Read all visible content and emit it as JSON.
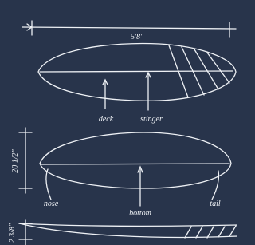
{
  "dimensions": {
    "length": "5'8\"",
    "width": "20 1/2\"",
    "thickness": "2 3/8\""
  },
  "labels": {
    "deck": "deck",
    "stinger": "stinger",
    "nose": "nose",
    "bottom": "bottom",
    "tail": "tail"
  }
}
